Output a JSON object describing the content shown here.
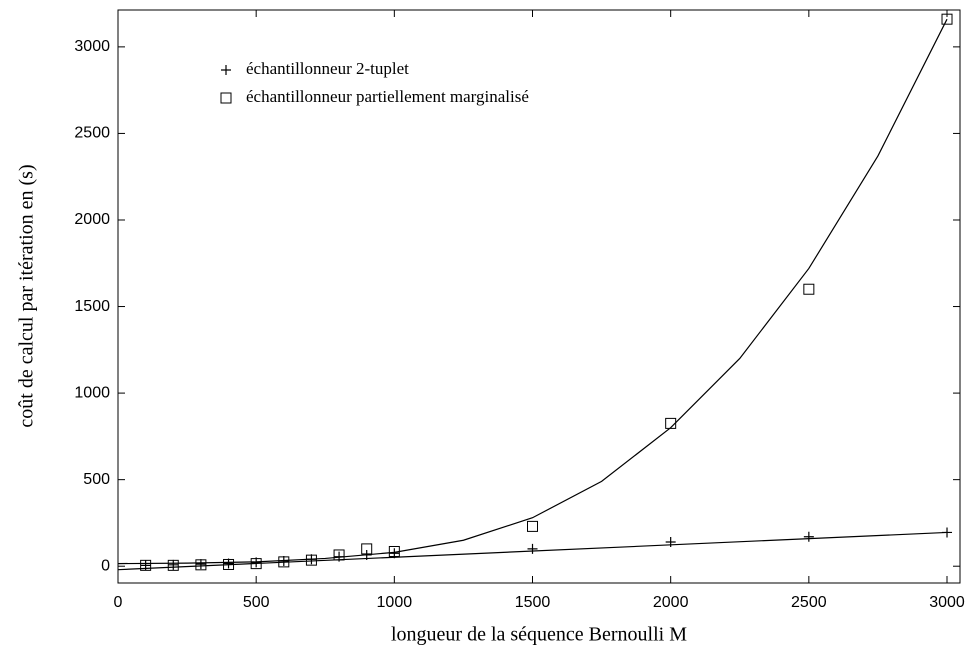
{
  "chart_data": {
    "type": "scatter",
    "xlabel": "longueur de la séquence Bernoulli M",
    "ylabel": "coût de calcul par itération en (s)",
    "x": [
      100,
      200,
      300,
      400,
      500,
      600,
      700,
      800,
      900,
      1000,
      1500,
      2000,
      2500,
      3000
    ],
    "series": [
      {
        "name": "échantillonneur 2-tuplet",
        "color": "#000000",
        "marker": "plus",
        "values": [
          5,
          8,
          12,
          16,
          22,
          30,
          40,
          55,
          65,
          75,
          100,
          140,
          170,
          195
        ]
      },
      {
        "name": "échantillonneur partiellement marginalisé",
        "color": "#000000",
        "marker": "square",
        "values": [
          5,
          5,
          8,
          10,
          15,
          25,
          35,
          65,
          100,
          85,
          230,
          825,
          1600,
          3160
        ]
      }
    ],
    "fits": [
      {
        "x": [
          0,
          3000
        ],
        "values": [
          -20,
          195
        ]
      },
      {
        "x": [
          0,
          250,
          500,
          750,
          1000,
          1250,
          1500,
          1750,
          2000,
          2250,
          2500,
          2750,
          3000
        ],
        "values": [
          15,
          18,
          25,
          45,
          80,
          150,
          280,
          490,
          800,
          1200,
          1720,
          2370,
          3160
        ]
      }
    ],
    "xlim": [
      0,
      3047
    ],
    "ylim": [
      -97,
      3213
    ],
    "xticks": [
      0,
      500,
      1000,
      1500,
      2000,
      2500,
      3000
    ],
    "yticks": [
      0,
      500,
      1000,
      1500,
      2000,
      2500,
      3000
    ],
    "legend": "upper left"
  }
}
